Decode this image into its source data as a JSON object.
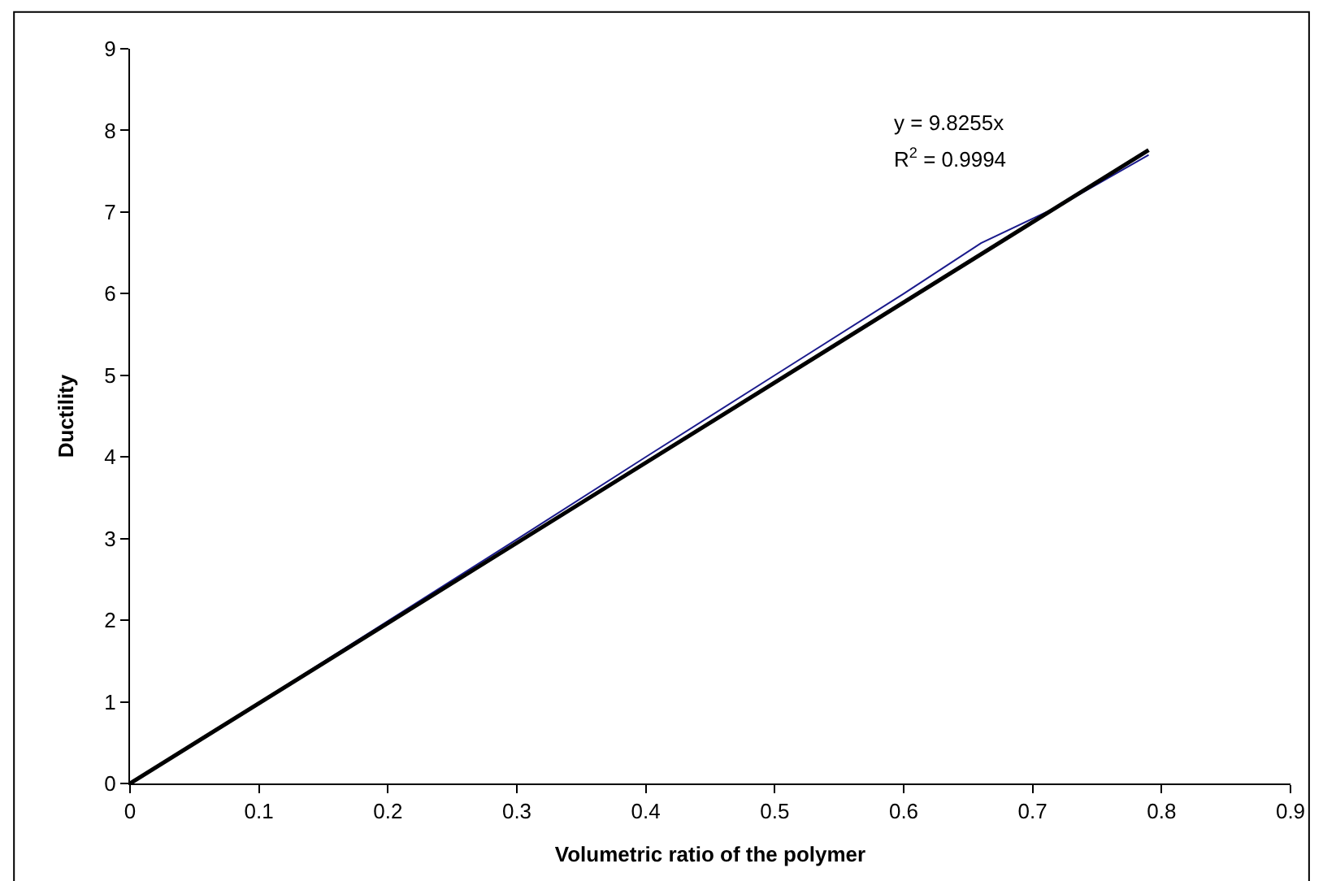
{
  "chart_data": {
    "type": "line",
    "xlabel": "Volumetric ratio of the polymer",
    "ylabel": "Ductility",
    "x": [
      0,
      0.1,
      0.2,
      0.3,
      0.4,
      0.5,
      0.6,
      0.66,
      0.72,
      0.79
    ],
    "series": [
      {
        "color": "#1a1a8c",
        "values": [
          0,
          0.99,
          1.99,
          2.99,
          4.0,
          5.0,
          6.0,
          6.62,
          7.07,
          7.7
        ]
      },
      {
        "type": "line",
        "color": "#000000",
        "x": [
          0,
          0.79
        ],
        "values": [
          0,
          7.76
        ]
      }
    ],
    "xlim": [
      0,
      0.9
    ],
    "xticks": [
      0,
      0.1,
      0.2,
      0.3,
      0.4,
      0.5,
      0.6,
      0.7,
      0.8,
      0.9
    ],
    "ylim": [
      0,
      9
    ],
    "yticks": [
      0,
      1,
      2,
      3,
      4,
      5,
      6,
      7,
      8,
      9
    ],
    "marker": "none",
    "annotations": [
      "y = 9.8255x",
      "R$^{2}$ = 0.9994"
    ]
  }
}
